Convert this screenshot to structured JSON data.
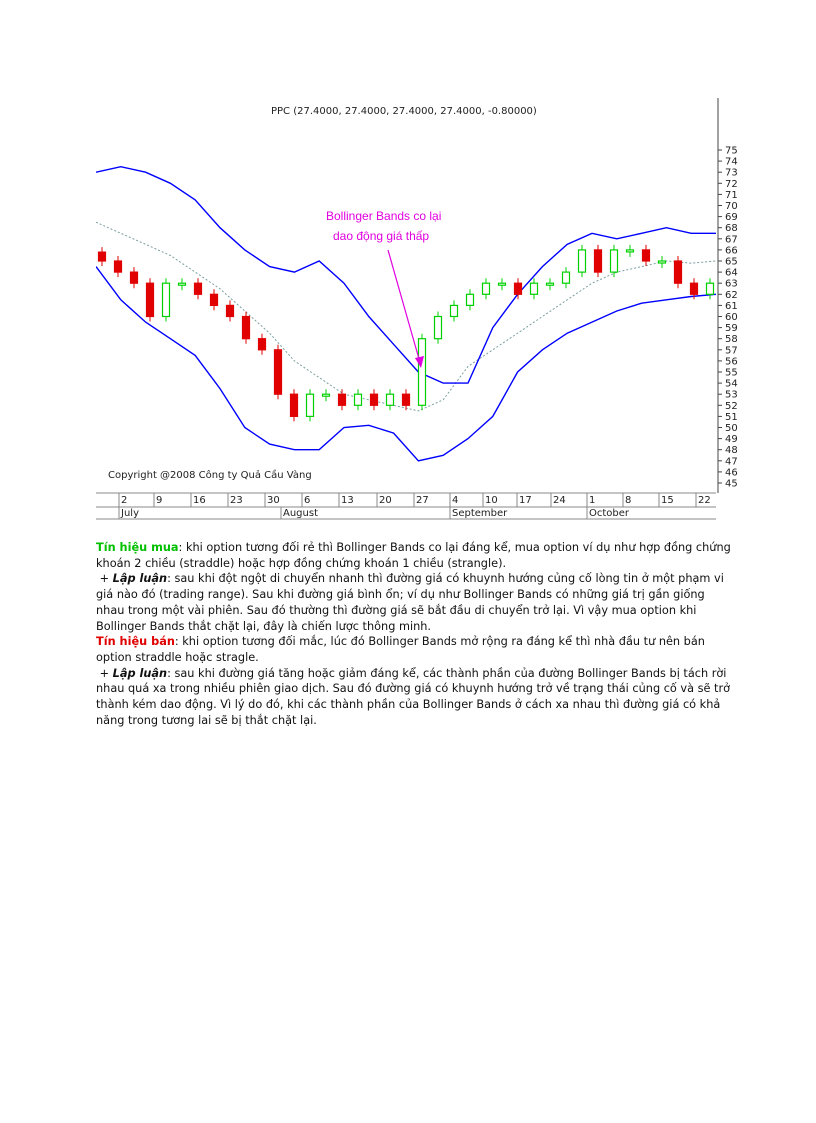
{
  "chart": {
    "title": "PPC (27.4000, 27.4000, 27.4000, 27.4000, -0.80000)",
    "copyright": "Copyright @2008 Công ty Quả Cầu Vàng",
    "annotation_line1": "Bollinger Bands co lại",
    "annotation_line2": "dao động giá thấp",
    "colors": {
      "bands": "#0000ff",
      "midline": "#7a9ea0",
      "up": "#00d000",
      "down": "#e00000",
      "annotation": "#e000e0"
    }
  },
  "chart_data": {
    "type": "candlestick",
    "title": "PPC (27.4000, 27.4000, 27.4000, 27.4000, -0.80000)",
    "ylim": [
      45,
      75
    ],
    "y_ticks": [
      45,
      46,
      47,
      48,
      49,
      50,
      51,
      52,
      53,
      54,
      55,
      56,
      57,
      58,
      59,
      60,
      61,
      62,
      63,
      64,
      65,
      66,
      67,
      68,
      69,
      70,
      71,
      72,
      73,
      74,
      75
    ],
    "x_tick_labels": [
      "2",
      "9",
      "16",
      "23",
      "30",
      "6",
      "13",
      "20",
      "27",
      "4",
      "10",
      "17",
      "24",
      "1",
      "8",
      "15",
      "22"
    ],
    "month_labels": [
      "July",
      "August",
      "September",
      "October"
    ],
    "series": [
      {
        "name": "upper_band",
        "values": [
          73,
          73.5,
          73,
          72,
          70.5,
          68,
          66,
          64.5,
          64,
          65,
          63,
          60,
          57.5,
          55,
          54,
          54,
          59,
          62,
          64.5,
          66.5,
          67.5,
          67,
          67.5,
          68,
          67.5,
          67.5
        ]
      },
      {
        "name": "middle",
        "values": [
          68.5,
          67.5,
          66.5,
          65.5,
          64,
          62.5,
          60.5,
          58.5,
          56,
          54.5,
          53,
          52.5,
          52,
          51.5,
          52.5,
          55.5,
          57,
          58.5,
          60,
          61.5,
          63,
          64,
          64.5,
          65,
          64.8,
          65
        ]
      },
      {
        "name": "lower_band",
        "values": [
          64.5,
          61.5,
          59.5,
          58,
          56.5,
          53.5,
          50,
          48.5,
          48,
          48,
          50,
          50.2,
          49.5,
          47,
          47.5,
          49,
          51,
          55,
          57,
          58.5,
          59.5,
          60.5,
          61.2,
          61.5,
          61.8,
          62
        ]
      },
      {
        "name": "candles_close",
        "values": [
          65,
          64,
          63,
          60,
          63,
          63,
          62,
          61,
          60,
          58,
          57,
          53,
          51,
          53,
          53,
          52,
          53,
          52,
          53,
          52,
          58,
          60,
          61,
          62,
          63,
          63,
          62,
          63,
          63,
          64,
          66,
          64,
          66,
          66,
          65,
          65,
          63,
          62,
          63
        ]
      }
    ]
  },
  "text": {
    "buy_label": "Tín hiệu mua",
    "buy_text": ": khi option tương đối rẻ thì Bollinger Bands co lại đáng kể, mua option ví dụ như hợp đồng chứng khoán 2 chiều (straddle) hoặc hợp đồng chứng khoán 1 chiều (strangle).",
    "arg_prefix": "+",
    "arg_label": "Lập luận",
    "arg1_text": ": sau khi đột ngột di chuyển nhanh thì đường giá có khuynh hướng củng cố lòng tin ở một phạm vi giá nào đó (trading range). Sau khi đường giá bình ổn; ví dụ như Bollinger Bands có những giá trị gần giống nhau trong một vài phiên. Sau đó thường thì đường giá sẽ bắt đầu di chuyển trở lại. Vì vậy mua option khi Bollinger Bands thắt chặt lại, đây là chiến lược thông minh.",
    "sell_label": "Tín hiệu bán",
    "sell_text": ": khi option tương đối mắc, lúc đó Bollinger Bands mở rộng ra đáng kể thì nhà đầu tư nên bán option straddle hoặc stragle.",
    "arg2_text": ": sau khi đường giá tăng hoặc giảm đáng kể, các thành phần của đường Bollinger Bands bị tách rời nhau quá xa trong nhiều phiên giao dịch. Sau đó đường giá có khuynh hướng trở về trạng thái củng cố và sẽ trở thành kém dao động. Vì lý do đó, khi các thành phần của Bollinger Bands ở cách xa nhau thì đường giá có khả năng trong tương lai sẽ bị thắt chặt lại."
  }
}
